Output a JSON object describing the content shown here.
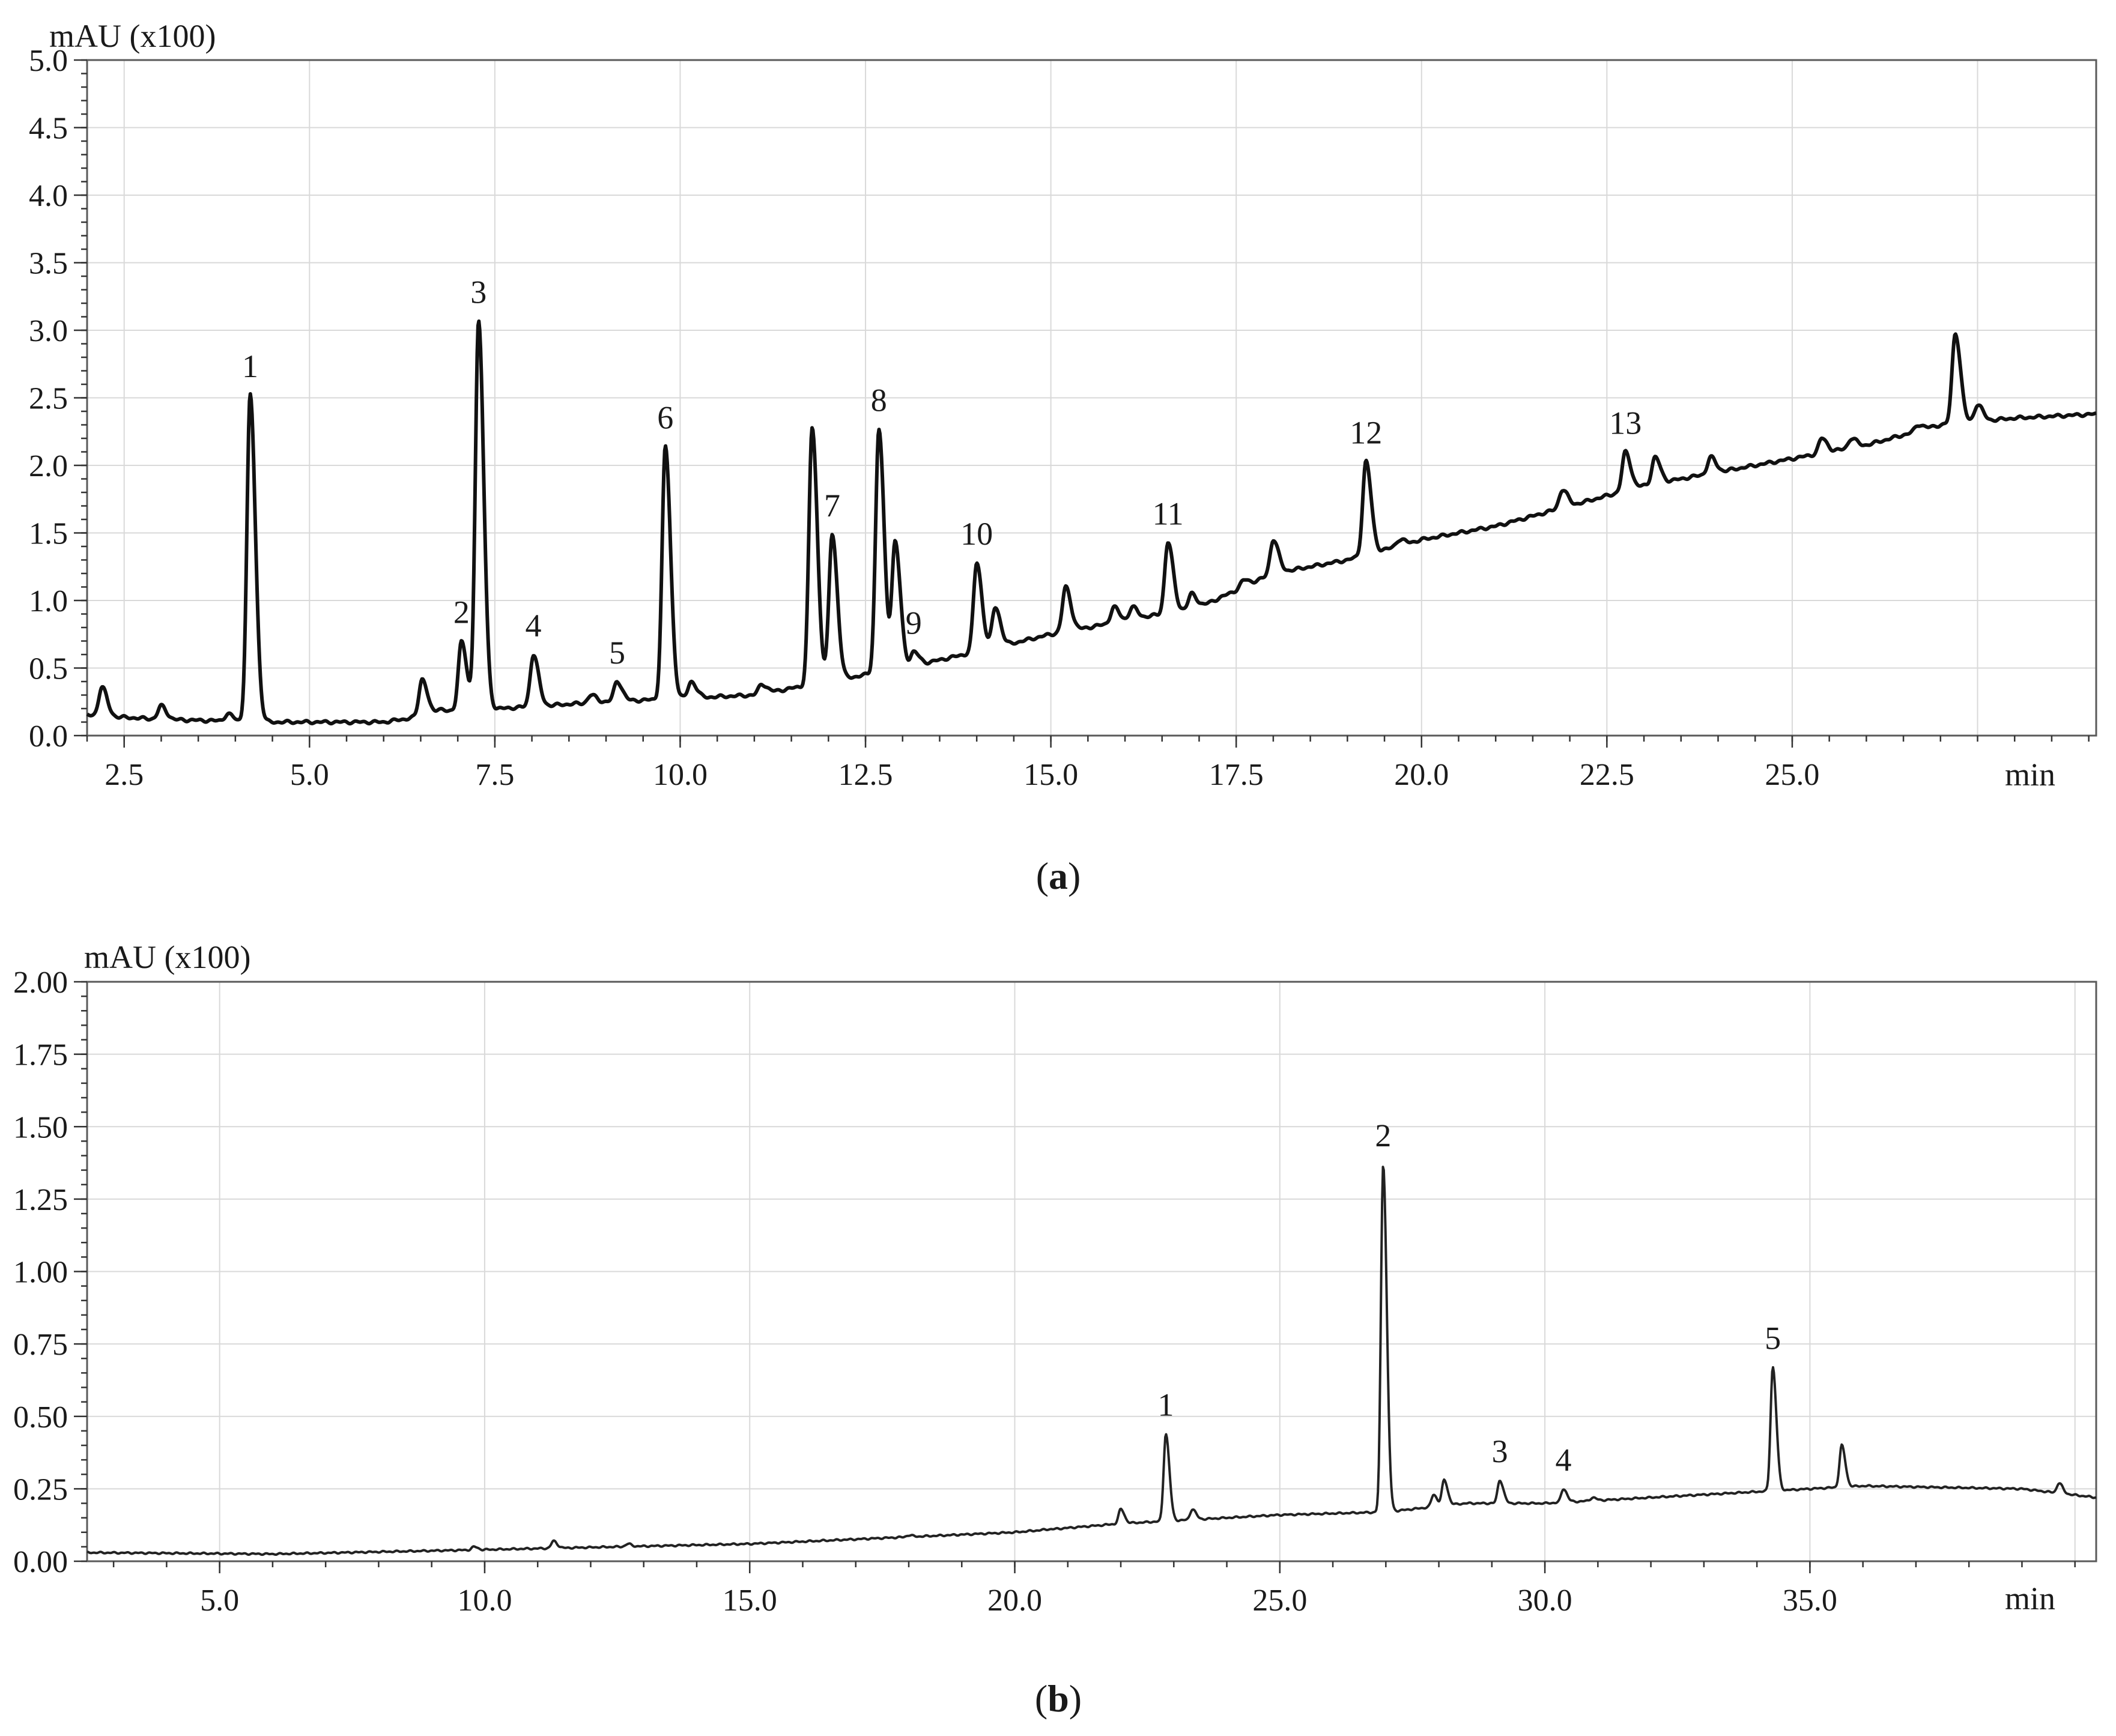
{
  "chart_data": [
    {
      "type": "line",
      "panel": "a",
      "caption_letter": "a",
      "title": "",
      "ylabel": "mAU (x100)",
      "xunit": "min",
      "xlim": [
        2.0,
        29.1
      ],
      "ylim": [
        0.0,
        5.0
      ],
      "grid": true,
      "xticks": [
        "2.5",
        "5.0",
        "7.5",
        "10.0",
        "12.5",
        "15.0",
        "17.5",
        "20.0",
        "22.5",
        "25.0"
      ],
      "xtick_values": [
        2.5,
        5.0,
        7.5,
        10.0,
        12.5,
        15.0,
        17.5,
        20.0,
        22.5,
        25.0
      ],
      "xgrid_values": [
        2.5,
        5.0,
        7.5,
        10.0,
        12.5,
        15.0,
        17.5,
        20.0,
        22.5,
        25.0,
        27.5
      ],
      "yticks": [
        "0.0",
        "0.5",
        "1.0",
        "1.5",
        "2.0",
        "2.5",
        "3.0",
        "3.5",
        "4.0",
        "4.5",
        "5.0"
      ],
      "ytick_values": [
        0,
        0.5,
        1.0,
        1.5,
        2.0,
        2.5,
        3.0,
        3.5,
        4.0,
        4.5,
        5.0
      ],
      "baseline": [
        [
          2.0,
          0.15
        ],
        [
          3.0,
          0.12
        ],
        [
          4.5,
          0.1
        ],
        [
          6.0,
          0.1
        ],
        [
          7.0,
          0.18
        ],
        [
          9.0,
          0.25
        ],
        [
          11.0,
          0.3
        ],
        [
          12.0,
          0.4
        ],
        [
          13.0,
          0.5
        ],
        [
          14.0,
          0.62
        ],
        [
          15.0,
          0.75
        ],
        [
          16.0,
          0.85
        ],
        [
          17.0,
          0.95
        ],
        [
          18.0,
          1.2
        ],
        [
          19.0,
          1.3
        ],
        [
          20.0,
          1.45
        ],
        [
          21.0,
          1.55
        ],
        [
          22.0,
          1.7
        ],
        [
          23.0,
          1.85
        ],
        [
          24.0,
          1.95
        ],
        [
          25.0,
          2.05
        ],
        [
          26.0,
          2.15
        ],
        [
          27.0,
          2.3
        ],
        [
          28.0,
          2.35
        ],
        [
          29.1,
          2.38
        ]
      ],
      "peaks": [
        {
          "label": "1",
          "rt": 4.2,
          "height": 2.52
        },
        {
          "label": "2",
          "rt": 7.05,
          "height": 0.7
        },
        {
          "label": "3",
          "rt": 7.28,
          "height": 3.07
        },
        {
          "label": "4",
          "rt": 8.02,
          "height": 0.6
        },
        {
          "label": "5",
          "rt": 9.15,
          "height": 0.4
        },
        {
          "label": "6",
          "rt": 9.8,
          "height": 2.14
        },
        {
          "label": "7",
          "rt": 12.05,
          "height": 1.49
        },
        {
          "label": "8",
          "rt": 12.68,
          "height": 2.27
        },
        {
          "label": "9",
          "rt": 13.15,
          "height": 0.62
        },
        {
          "label": "10",
          "rt": 14.0,
          "height": 1.28
        },
        {
          "label": "11",
          "rt": 16.58,
          "height": 1.43
        },
        {
          "label": "12",
          "rt": 19.25,
          "height": 2.03
        },
        {
          "label": "13",
          "rt": 22.75,
          "height": 2.1
        }
      ],
      "other_peaks": [
        [
          2.2,
          0.36
        ],
        [
          3.0,
          0.22
        ],
        [
          3.9,
          0.16
        ],
        [
          6.52,
          0.42
        ],
        [
          6.75,
          0.2
        ],
        [
          8.8,
          0.3
        ],
        [
          10.15,
          0.4
        ],
        [
          11.1,
          0.38
        ],
        [
          11.78,
          2.28
        ],
        [
          12.9,
          1.43
        ],
        [
          14.25,
          0.95
        ],
        [
          15.2,
          1.1
        ],
        [
          15.85,
          0.95
        ],
        [
          16.1,
          0.95
        ],
        [
          16.9,
          1.05
        ],
        [
          17.6,
          1.15
        ],
        [
          18.0,
          1.45
        ],
        [
          18.5,
          1.25
        ],
        [
          19.7,
          1.45
        ],
        [
          21.9,
          1.82
        ],
        [
          23.15,
          2.06
        ],
        [
          23.9,
          2.06
        ],
        [
          25.4,
          2.2
        ],
        [
          25.8,
          2.2
        ],
        [
          26.7,
          2.3
        ],
        [
          27.2,
          2.98
        ],
        [
          27.5,
          2.45
        ]
      ]
    },
    {
      "type": "line",
      "panel": "b",
      "caption_letter": "b",
      "title": "",
      "ylabel": "mAU  (x100)",
      "xunit": "min",
      "xlim": [
        2.5,
        40.4
      ],
      "ylim": [
        0.0,
        2.0
      ],
      "grid": true,
      "xticks": [
        "5.0",
        "10.0",
        "15.0",
        "20.0",
        "25.0",
        "30.0",
        "35.0"
      ],
      "xtick_values": [
        5.0,
        10.0,
        15.0,
        20.0,
        25.0,
        30.0,
        35.0
      ],
      "xgrid_values": [
        5.0,
        10.0,
        15.0,
        20.0,
        25.0,
        30.0,
        35.0,
        40.0
      ],
      "yticks": [
        "0.00",
        "0.25",
        "0.50",
        "0.75",
        "1.00",
        "1.25",
        "1.50",
        "1.75",
        "2.00"
      ],
      "ytick_values": [
        0,
        0.25,
        0.5,
        0.75,
        1.0,
        1.25,
        1.5,
        1.75,
        2.0
      ],
      "baseline": [
        [
          2.5,
          0.03
        ],
        [
          6.0,
          0.025
        ],
        [
          10.0,
          0.04
        ],
        [
          15.0,
          0.06
        ],
        [
          20.0,
          0.1
        ],
        [
          22.0,
          0.13
        ],
        [
          25.0,
          0.16
        ],
        [
          27.0,
          0.17
        ],
        [
          28.5,
          0.2
        ],
        [
          30.0,
          0.2
        ],
        [
          33.0,
          0.23
        ],
        [
          34.0,
          0.24
        ],
        [
          36.0,
          0.26
        ],
        [
          39.0,
          0.25
        ],
        [
          40.4,
          0.22
        ]
      ],
      "peaks": [
        {
          "label": "1",
          "rt": 22.85,
          "height": 0.44
        },
        {
          "label": "2",
          "rt": 26.95,
          "height": 1.37
        },
        {
          "label": "3",
          "rt": 29.15,
          "height": 0.28
        },
        {
          "label": "4",
          "rt": 30.35,
          "height": 0.25
        },
        {
          "label": "5",
          "rt": 34.3,
          "height": 0.67
        }
      ],
      "other_peaks": [
        [
          9.8,
          0.05
        ],
        [
          11.3,
          0.07
        ],
        [
          12.7,
          0.06
        ],
        [
          17.5,
          0.08
        ],
        [
          18.0,
          0.09
        ],
        [
          20.6,
          0.11
        ],
        [
          22.0,
          0.18
        ],
        [
          23.35,
          0.18
        ],
        [
          24.2,
          0.15
        ],
        [
          27.9,
          0.23
        ],
        [
          28.1,
          0.28
        ],
        [
          30.9,
          0.22
        ],
        [
          35.6,
          0.4
        ],
        [
          39.7,
          0.27
        ]
      ]
    }
  ]
}
